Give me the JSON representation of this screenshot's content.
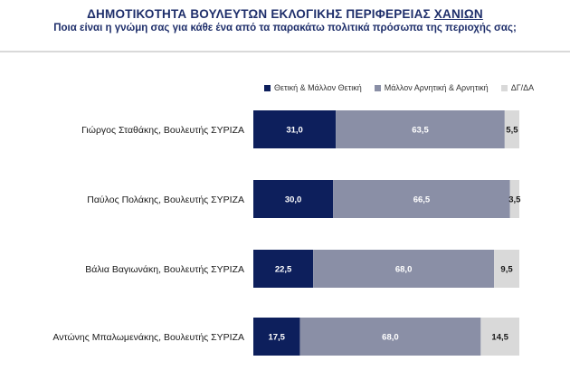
{
  "header": {
    "title_main": "ΔΗΜΟΤΙΚΟΤΗΤΑ ΒΟΥΛΕΥΤΩΝ ΕΚΛΟΓΙΚΗΣ ΠΕΡΙΦΕΡΕΙΑΣ",
    "title_highlight": "ΧΑΝΙΩΝ",
    "subtitle": "Ποια είναι η γνώμη σας για κάθε ένα από τα παρακάτω πολιτικά πρόσωπα της περιοχής σας;"
  },
  "chart_data": {
    "type": "bar",
    "orientation": "horizontal",
    "stacked": true,
    "title": "ΔΗΜΟΤΙΚΟΤΗΤΑ ΒΟΥΛΕΥΤΩΝ ΕΚΛΟΓΙΚΗΣ ΠΕΡΙΦΕΡΕΙΑΣ ΧΑΝΙΩΝ",
    "subtitle": "Ποια είναι η γνώμη σας για κάθε ένα από τα παρακάτω πολιτικά πρόσωπα της περιοχής σας;",
    "categories": [
      "Γιώργος Σταθάκης, Βουλευτής ΣΥΡΙΖΑ",
      "Παύλος Πολάκης, Βουλευτής ΣΥΡΙΖΑ",
      "Βάλια Βαγιωνάκη, Βουλευτής ΣΥΡΙΖΑ",
      "Αντώνης Μπαλωμενάκης, Βουλευτής ΣΥΡΙΖΑ"
    ],
    "series": [
      {
        "name": "Θετική & Μάλλον Θετική",
        "color": "#0d1f5c",
        "label_color": "#ffffff",
        "values": [
          31.0,
          30.0,
          22.5,
          17.5
        ],
        "labels": [
          "31,0",
          "30,0",
          "22,5",
          "17,5"
        ]
      },
      {
        "name": "Μάλλον Αρνητική & Αρνητική",
        "color": "#8a8fa6",
        "label_color": "#ffffff",
        "values": [
          63.5,
          66.5,
          68.0,
          68.0
        ],
        "labels": [
          "63,5",
          "66,5",
          "68,0",
          "68,0"
        ]
      },
      {
        "name": "ΔΓ/ΔΑ",
        "color": "#d9d9d9",
        "label_color": "#1a1a1a",
        "values": [
          5.5,
          3.5,
          9.5,
          14.5
        ],
        "labels": [
          "5,5",
          "3,5",
          "9,5",
          "14,5"
        ]
      }
    ],
    "xlim": [
      0,
      100
    ],
    "legend_position": "top",
    "grid": false
  }
}
